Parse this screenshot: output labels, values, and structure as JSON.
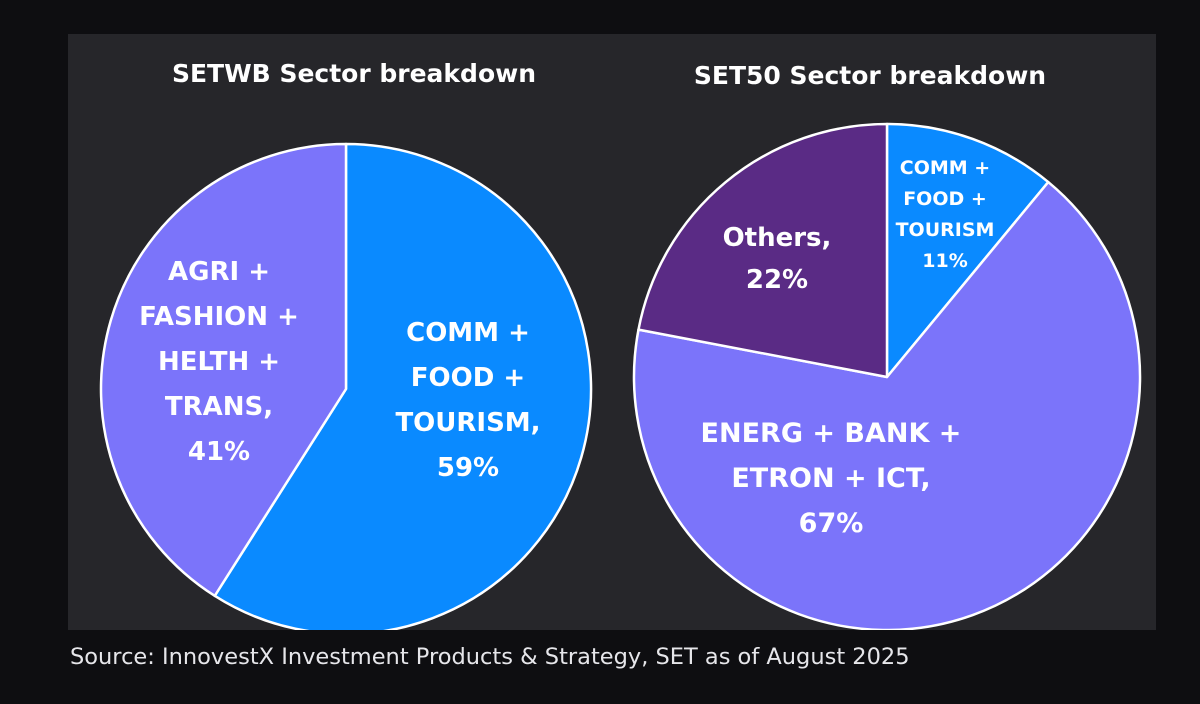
{
  "colors": {
    "background": "#0e0e11",
    "panel": "#26262a",
    "blue": "#0a8aff",
    "lavender": "#7b74fa",
    "purple": "#5a2b85",
    "edge": "#ffffff"
  },
  "chart_data": [
    {
      "type": "pie",
      "title": "SETWB Sector breakdown",
      "slices": [
        {
          "label_lines": [
            "COMM +",
            "FOOD +",
            "TOURISM,",
            "59%"
          ],
          "name": "COMM + FOOD + TOURISM",
          "value": 59,
          "color": "#0a8aff"
        },
        {
          "label_lines": [
            "AGRI +",
            "FASHION +",
            "HELTH +",
            "TRANS,",
            "41%"
          ],
          "name": "AGRI + FASHION + HELTH + TRANS",
          "value": 41,
          "color": "#7b74fa"
        }
      ]
    },
    {
      "type": "pie",
      "title": "SET50 Sector breakdown",
      "slices": [
        {
          "label_lines": [
            "COMM +",
            "FOOD +",
            "TOURISM",
            "11%"
          ],
          "name": "COMM + FOOD + TOURISM",
          "value": 11,
          "color": "#0a8aff"
        },
        {
          "label_lines": [
            "ENERG + BANK +",
            "ETRON + ICT,",
            "67%"
          ],
          "name": "ENERG + BANK + ETRON + ICT",
          "value": 67,
          "color": "#7b74fa"
        },
        {
          "label_lines": [
            "Others,",
            "22%"
          ],
          "name": "Others",
          "value": 22,
          "color": "#5a2b85"
        }
      ]
    }
  ],
  "source": "Source: InnovestX Investment Products & Strategy, SET as of August 2025"
}
